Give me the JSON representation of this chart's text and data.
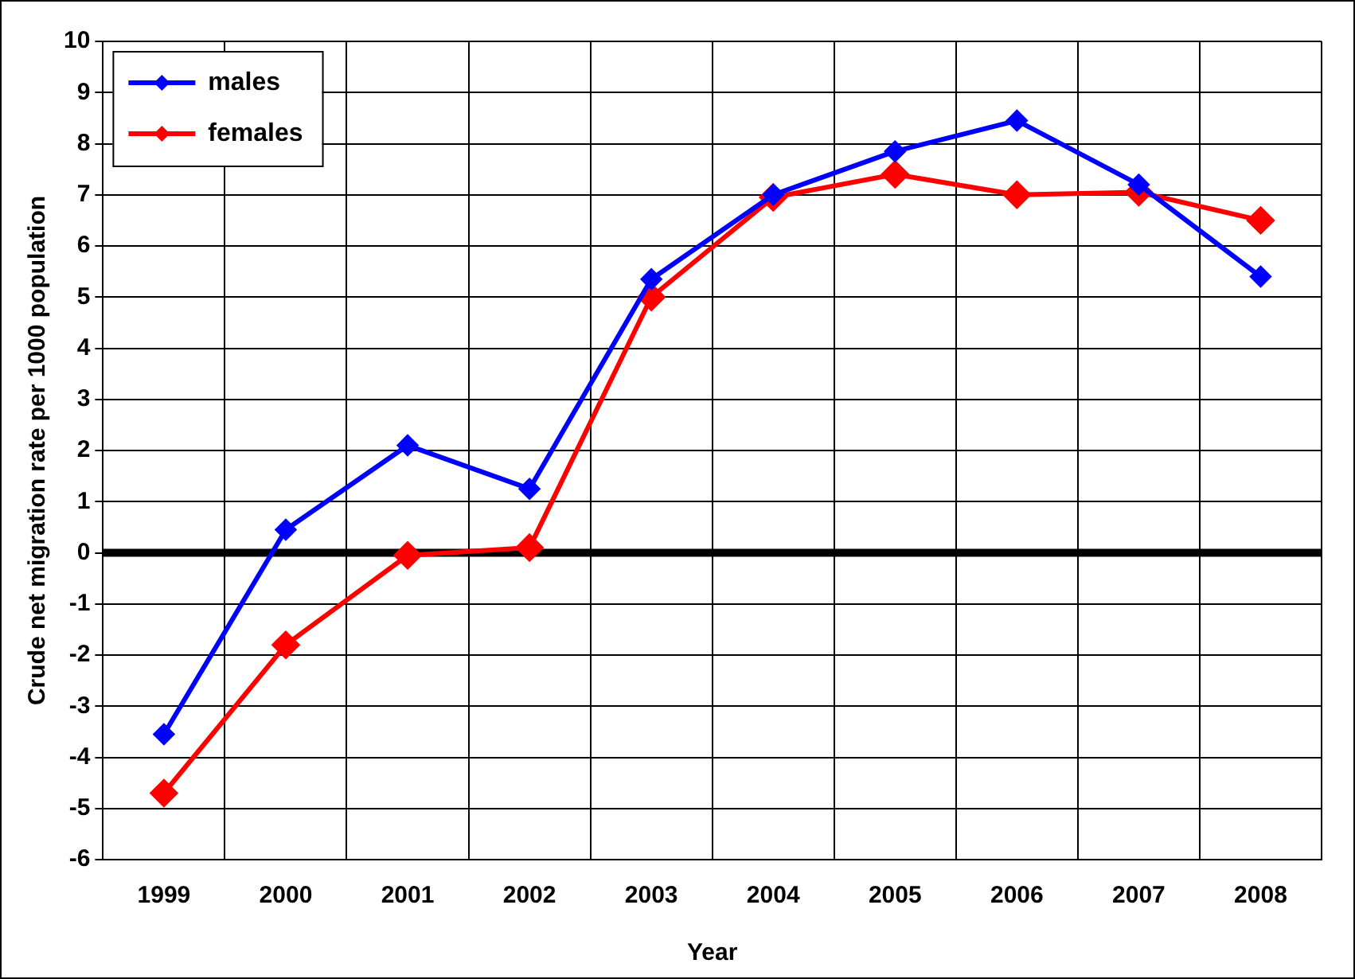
{
  "chart_data": {
    "type": "line",
    "xlabel": "Year",
    "ylabel": "Crude net migration rate per 1000 population",
    "categories": [
      "1999",
      "2000",
      "2001",
      "2002",
      "2003",
      "2004",
      "2005",
      "2006",
      "2007",
      "2008"
    ],
    "series": [
      {
        "name": "males",
        "color": "#0000ff",
        "values": [
          -3.55,
          0.45,
          2.1,
          1.25,
          5.35,
          7.0,
          7.85,
          8.45,
          7.2,
          5.4
        ]
      },
      {
        "name": "females",
        "color": "#ff0000",
        "values": [
          -4.7,
          -1.8,
          -0.05,
          0.1,
          5.0,
          6.95,
          7.4,
          7.0,
          7.05,
          6.5
        ]
      }
    ],
    "ylim": [
      -6,
      10
    ],
    "yticks": [
      -6,
      -5,
      -4,
      -3,
      -2,
      -1,
      0,
      1,
      2,
      3,
      4,
      5,
      6,
      7,
      8,
      9,
      10
    ],
    "ref_lines": [
      {
        "axis": "y",
        "value": 0,
        "color": "#000000"
      }
    ],
    "grid": true,
    "legend": "top left",
    "marker": "diamond",
    "line_style": "solid"
  }
}
